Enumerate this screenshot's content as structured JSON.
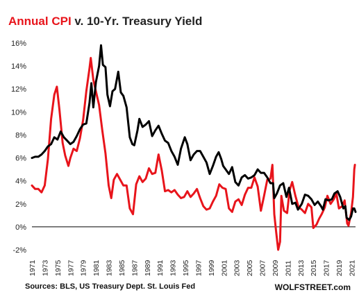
{
  "title": {
    "part1": "Annual CPI",
    "part2": " v. 10-Yr. Treasury Yield"
  },
  "footer": {
    "source": "Sources: BLS, US Treasury Dept. St. Louis Fed",
    "brand": "WOLFSTREET.com"
  },
  "colors": {
    "cpi": "#e8141b",
    "yield": "#000000",
    "zero_line": "#000000"
  },
  "chart_data": {
    "type": "line",
    "title": "Annual CPI v. 10-Yr. Treasury Yield",
    "xlim": [
      1971,
      2021.6
    ],
    "ylim": [
      -2,
      16
    ],
    "y_ticks": [
      -2,
      0,
      2,
      4,
      6,
      8,
      10,
      12,
      14,
      16
    ],
    "y_tick_labels": [
      "-2%",
      "0%",
      "2%",
      "4%",
      "6%",
      "8%",
      "10%",
      "12%",
      "14%",
      "16%"
    ],
    "x_ticks": [
      1971,
      1973,
      1975,
      1977,
      1979,
      1981,
      1983,
      1985,
      1987,
      1989,
      1991,
      1993,
      1995,
      1997,
      1999,
      2001,
      2003,
      2005,
      2007,
      2009,
      2011,
      2013,
      2015,
      2017,
      2019,
      2021
    ],
    "grid": false,
    "legend": "none",
    "series": [
      {
        "key": "cpi",
        "values": [
          [
            1971.0,
            3.6
          ],
          [
            1971.5,
            3.3
          ],
          [
            1972.0,
            3.3
          ],
          [
            1972.5,
            3.0
          ],
          [
            1973.0,
            3.6
          ],
          [
            1973.5,
            5.9
          ],
          [
            1974.0,
            9.4
          ],
          [
            1974.5,
            11.5
          ],
          [
            1974.9,
            12.2
          ],
          [
            1975.3,
            10.2
          ],
          [
            1975.8,
            7.3
          ],
          [
            1976.2,
            6.2
          ],
          [
            1976.7,
            5.3
          ],
          [
            1977.0,
            6.0
          ],
          [
            1977.5,
            6.8
          ],
          [
            1978.0,
            6.6
          ],
          [
            1978.5,
            7.7
          ],
          [
            1979.0,
            9.3
          ],
          [
            1979.5,
            11.8
          ],
          [
            1980.0,
            13.8
          ],
          [
            1980.2,
            14.7
          ],
          [
            1980.6,
            12.8
          ],
          [
            1981.0,
            11.8
          ],
          [
            1981.5,
            10.6
          ],
          [
            1982.0,
            8.4
          ],
          [
            1982.5,
            6.4
          ],
          [
            1983.0,
            3.6
          ],
          [
            1983.4,
            2.5
          ],
          [
            1983.8,
            4.1
          ],
          [
            1984.3,
            4.6
          ],
          [
            1984.8,
            4.1
          ],
          [
            1985.3,
            3.6
          ],
          [
            1985.8,
            3.6
          ],
          [
            1986.3,
            1.6
          ],
          [
            1986.8,
            1.1
          ],
          [
            1987.3,
            3.7
          ],
          [
            1987.8,
            4.4
          ],
          [
            1988.3,
            3.9
          ],
          [
            1988.8,
            4.2
          ],
          [
            1989.3,
            5.1
          ],
          [
            1989.8,
            4.6
          ],
          [
            1990.3,
            4.7
          ],
          [
            1990.8,
            6.3
          ],
          [
            1991.3,
            4.9
          ],
          [
            1991.8,
            3.1
          ],
          [
            1992.3,
            3.2
          ],
          [
            1992.8,
            3.0
          ],
          [
            1993.3,
            3.2
          ],
          [
            1993.8,
            2.8
          ],
          [
            1994.3,
            2.5
          ],
          [
            1994.8,
            2.6
          ],
          [
            1995.3,
            3.1
          ],
          [
            1995.8,
            2.6
          ],
          [
            1996.3,
            2.9
          ],
          [
            1996.8,
            3.3
          ],
          [
            1997.3,
            2.5
          ],
          [
            1997.8,
            1.8
          ],
          [
            1998.3,
            1.5
          ],
          [
            1998.8,
            1.6
          ],
          [
            1999.3,
            2.2
          ],
          [
            1999.8,
            2.7
          ],
          [
            2000.3,
            3.7
          ],
          [
            2000.8,
            3.4
          ],
          [
            2001.3,
            3.3
          ],
          [
            2001.8,
            1.6
          ],
          [
            2002.3,
            1.3
          ],
          [
            2002.8,
            2.2
          ],
          [
            2003.3,
            2.4
          ],
          [
            2003.8,
            1.9
          ],
          [
            2004.3,
            2.8
          ],
          [
            2004.8,
            3.4
          ],
          [
            2005.3,
            3.4
          ],
          [
            2005.8,
            4.3
          ],
          [
            2006.3,
            3.5
          ],
          [
            2006.8,
            1.4
          ],
          [
            2007.3,
            2.7
          ],
          [
            2007.8,
            4.1
          ],
          [
            2008.3,
            4.2
          ],
          [
            2008.6,
            5.4
          ],
          [
            2008.9,
            1.1
          ],
          [
            2009.2,
            -0.5
          ],
          [
            2009.5,
            -2.0
          ],
          [
            2009.8,
            -1.3
          ],
          [
            2010.0,
            2.7
          ],
          [
            2010.4,
            1.4
          ],
          [
            2010.9,
            1.2
          ],
          [
            2011.3,
            3.2
          ],
          [
            2011.7,
            3.9
          ],
          [
            2012.2,
            2.7
          ],
          [
            2012.7,
            1.7
          ],
          [
            2013.2,
            1.5
          ],
          [
            2013.7,
            1.2
          ],
          [
            2014.2,
            2.0
          ],
          [
            2014.7,
            1.7
          ],
          [
            2015.0,
            -0.1
          ],
          [
            2015.5,
            0.2
          ],
          [
            2015.9,
            0.7
          ],
          [
            2016.3,
            1.1
          ],
          [
            2016.8,
            1.7
          ],
          [
            2017.2,
            2.7
          ],
          [
            2017.7,
            2.0
          ],
          [
            2018.2,
            2.4
          ],
          [
            2018.6,
            2.9
          ],
          [
            2019.0,
            1.6
          ],
          [
            2019.5,
            1.8
          ],
          [
            2019.9,
            2.3
          ],
          [
            2020.3,
            0.3
          ],
          [
            2020.5,
            0.1
          ],
          [
            2020.9,
            1.2
          ],
          [
            2021.2,
            2.6
          ],
          [
            2021.4,
            5.0
          ],
          [
            2021.5,
            5.4
          ]
        ]
      },
      {
        "key": "yield",
        "values": [
          [
            1971.0,
            6.0
          ],
          [
            1971.5,
            6.1
          ],
          [
            1972.0,
            6.1
          ],
          [
            1972.5,
            6.3
          ],
          [
            1973.0,
            6.6
          ],
          [
            1973.5,
            7.0
          ],
          [
            1974.0,
            7.2
          ],
          [
            1974.5,
            7.8
          ],
          [
            1975.0,
            7.6
          ],
          [
            1975.5,
            8.3
          ],
          [
            1976.0,
            7.8
          ],
          [
            1976.5,
            7.5
          ],
          [
            1977.0,
            7.2
          ],
          [
            1977.5,
            7.4
          ],
          [
            1978.0,
            7.9
          ],
          [
            1978.5,
            8.5
          ],
          [
            1979.0,
            8.9
          ],
          [
            1979.5,
            9.0
          ],
          [
            1980.0,
            10.8
          ],
          [
            1980.3,
            12.5
          ],
          [
            1980.6,
            10.4
          ],
          [
            1981.0,
            12.6
          ],
          [
            1981.5,
            14.0
          ],
          [
            1981.8,
            15.8
          ],
          [
            1982.1,
            14.1
          ],
          [
            1982.5,
            13.9
          ],
          [
            1982.8,
            11.5
          ],
          [
            1983.2,
            10.5
          ],
          [
            1983.6,
            11.8
          ],
          [
            1984.0,
            12.0
          ],
          [
            1984.5,
            13.5
          ],
          [
            1984.9,
            11.7
          ],
          [
            1985.3,
            11.4
          ],
          [
            1985.8,
            10.4
          ],
          [
            1986.3,
            7.8
          ],
          [
            1986.7,
            7.2
          ],
          [
            1987.0,
            7.1
          ],
          [
            1987.5,
            8.4
          ],
          [
            1987.8,
            9.4
          ],
          [
            1988.3,
            8.7
          ],
          [
            1988.8,
            8.9
          ],
          [
            1989.3,
            9.2
          ],
          [
            1989.8,
            7.9
          ],
          [
            1990.3,
            8.4
          ],
          [
            1990.8,
            8.8
          ],
          [
            1991.3,
            8.1
          ],
          [
            1991.8,
            7.5
          ],
          [
            1992.3,
            7.3
          ],
          [
            1992.8,
            6.6
          ],
          [
            1993.3,
            6.1
          ],
          [
            1993.8,
            5.4
          ],
          [
            1994.3,
            6.8
          ],
          [
            1994.9,
            7.8
          ],
          [
            1995.3,
            7.2
          ],
          [
            1995.8,
            5.8
          ],
          [
            1996.3,
            6.3
          ],
          [
            1996.8,
            6.6
          ],
          [
            1997.3,
            6.6
          ],
          [
            1997.8,
            6.1
          ],
          [
            1998.3,
            5.6
          ],
          [
            1998.8,
            4.6
          ],
          [
            1999.3,
            5.3
          ],
          [
            1999.8,
            6.1
          ],
          [
            2000.2,
            6.5
          ],
          [
            2000.6,
            5.9
          ],
          [
            2000.9,
            5.3
          ],
          [
            2001.3,
            5.0
          ],
          [
            2001.8,
            4.6
          ],
          [
            2002.3,
            5.2
          ],
          [
            2002.8,
            3.9
          ],
          [
            2003.3,
            3.6
          ],
          [
            2003.8,
            4.3
          ],
          [
            2004.3,
            4.5
          ],
          [
            2004.8,
            4.2
          ],
          [
            2005.3,
            4.3
          ],
          [
            2005.8,
            4.5
          ],
          [
            2006.3,
            5.0
          ],
          [
            2006.8,
            4.7
          ],
          [
            2007.3,
            4.7
          ],
          [
            2007.8,
            4.3
          ],
          [
            2008.3,
            3.8
          ],
          [
            2008.7,
            3.8
          ],
          [
            2008.9,
            2.5
          ],
          [
            2009.3,
            2.9
          ],
          [
            2009.8,
            3.6
          ],
          [
            2010.3,
            3.8
          ],
          [
            2010.8,
            2.6
          ],
          [
            2011.2,
            3.4
          ],
          [
            2011.7,
            2.0
          ],
          [
            2012.2,
            2.1
          ],
          [
            2012.6,
            1.5
          ],
          [
            2013.2,
            2.0
          ],
          [
            2013.7,
            2.8
          ],
          [
            2014.2,
            2.7
          ],
          [
            2014.7,
            2.4
          ],
          [
            2015.2,
            1.9
          ],
          [
            2015.7,
            2.2
          ],
          [
            2016.2,
            1.8
          ],
          [
            2016.5,
            1.5
          ],
          [
            2016.9,
            2.4
          ],
          [
            2017.4,
            2.3
          ],
          [
            2017.9,
            2.4
          ],
          [
            2018.3,
            2.9
          ],
          [
            2018.8,
            3.1
          ],
          [
            2019.2,
            2.6
          ],
          [
            2019.7,
            1.6
          ],
          [
            2020.0,
            1.8
          ],
          [
            2020.2,
            0.8
          ],
          [
            2020.6,
            0.6
          ],
          [
            2020.9,
            0.9
          ],
          [
            2021.2,
            1.6
          ],
          [
            2021.4,
            1.6
          ],
          [
            2021.6,
            1.3
          ]
        ]
      }
    ]
  }
}
